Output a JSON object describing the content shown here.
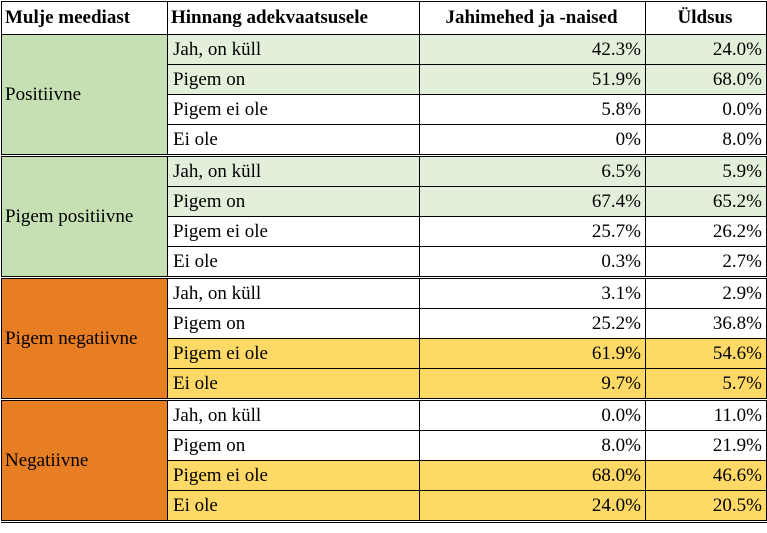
{
  "headers": [
    "Mulje meediast",
    "Hinnang adekvaatsusele",
    "Jahimehed ja -naised",
    "Üldsus"
  ],
  "colors": {
    "green": "#c6e0b4",
    "light_green": "#e2efda",
    "orange": "#e87e23",
    "yellow": "#ffd966",
    "white": "#ffffff"
  },
  "groups": [
    {
      "label": "Positiivne",
      "color": "#c6e0b4",
      "rows": [
        {
          "rating": "Jah, on küll",
          "hunters": "42.3%",
          "public": "24.0%",
          "color": "#e2efda"
        },
        {
          "rating": "Pigem on",
          "hunters": "51.9%",
          "public": "68.0%",
          "color": "#e2efda"
        },
        {
          "rating": "Pigem ei ole",
          "hunters": "5.8%",
          "public": "0.0%",
          "color": "#ffffff"
        },
        {
          "rating": "Ei ole",
          "hunters": "0%",
          "public": "8.0%",
          "color": "#ffffff"
        }
      ]
    },
    {
      "label": "Pigem positiivne",
      "color": "#c6e0b4",
      "rows": [
        {
          "rating": "Jah, on küll",
          "hunters": "6.5%",
          "public": "5.9%",
          "color": "#e2efda"
        },
        {
          "rating": "Pigem on",
          "hunters": "67.4%",
          "public": "65.2%",
          "color": "#e2efda"
        },
        {
          "rating": "Pigem ei ole",
          "hunters": "25.7%",
          "public": "26.2%",
          "color": "#ffffff"
        },
        {
          "rating": "Ei ole",
          "hunters": "0.3%",
          "public": "2.7%",
          "color": "#ffffff"
        }
      ]
    },
    {
      "label": "Pigem negatiivne",
      "color": "#e87e23",
      "rows": [
        {
          "rating": "Jah, on küll",
          "hunters": "3.1%",
          "public": "2.9%",
          "color": "#ffffff"
        },
        {
          "rating": "Pigem on",
          "hunters": "25.2%",
          "public": "36.8%",
          "color": "#ffffff"
        },
        {
          "rating": "Pigem ei ole",
          "hunters": "61.9%",
          "public": "54.6%",
          "color": "#ffd966"
        },
        {
          "rating": "Ei ole",
          "hunters": "9.7%",
          "public": "5.7%",
          "color": "#ffd966"
        }
      ]
    },
    {
      "label": "Negatiivne",
      "color": "#e87e23",
      "rows": [
        {
          "rating": "Jah, on küll",
          "hunters": "0.0%",
          "public": "11.0%",
          "color": "#ffffff"
        },
        {
          "rating": "Pigem on",
          "hunters": "8.0%",
          "public": "21.9%",
          "color": "#ffffff"
        },
        {
          "rating": "Pigem ei ole",
          "hunters": "68.0%",
          "public": "46.6%",
          "color": "#ffd966"
        },
        {
          "rating": "Ei ole",
          "hunters": "24.0%",
          "public": "20.5%",
          "color": "#ffd966"
        }
      ]
    }
  ]
}
